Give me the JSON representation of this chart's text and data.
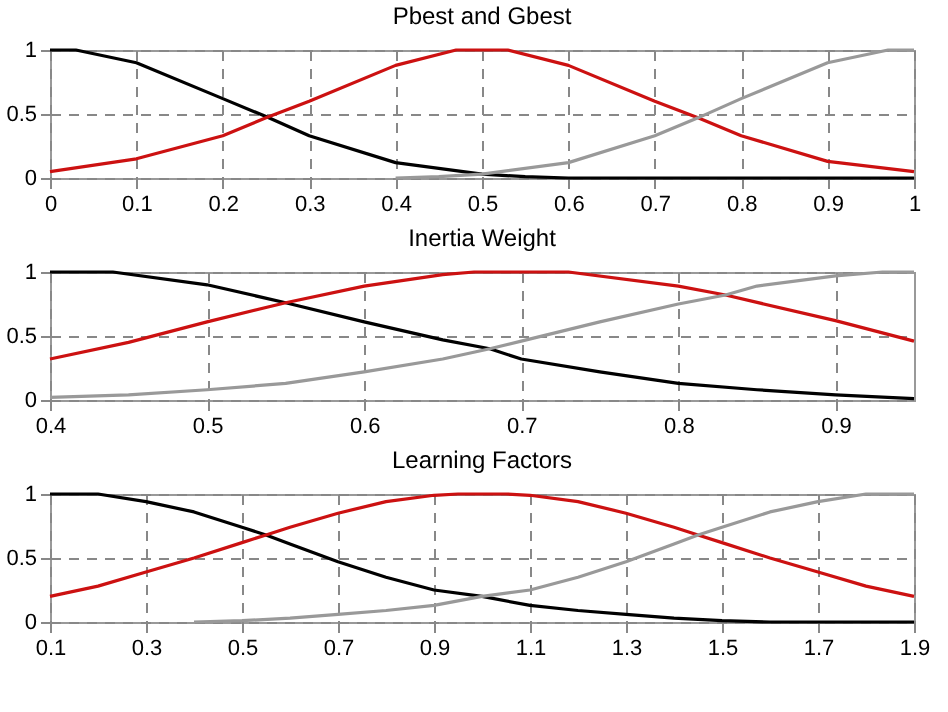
{
  "chart_data": [
    {
      "type": "line",
      "title": "Pbest and Gbest",
      "xlim": [
        0,
        1
      ],
      "xticks": [
        0,
        0.1,
        0.2,
        0.3,
        0.4,
        0.5,
        0.6,
        0.7,
        0.8,
        0.9,
        1
      ],
      "ylim": [
        0,
        1
      ],
      "yticks": [
        0,
        0.5,
        1
      ],
      "grid": true,
      "line_style": "solid",
      "marker": "none",
      "series": [
        {
          "color": "#000000",
          "x": [
            0,
            0.03,
            0.1,
            0.2,
            0.25,
            0.3,
            0.4,
            0.5,
            0.55,
            0.6,
            1
          ],
          "values": [
            1,
            1,
            0.9,
            0.62,
            0.48,
            0.33,
            0.12,
            0.03,
            0.01,
            0,
            0
          ]
        },
        {
          "color": "#cc1111",
          "x": [
            0,
            0.1,
            0.2,
            0.25,
            0.3,
            0.4,
            0.47,
            0.53,
            0.6,
            0.7,
            0.75,
            0.8,
            0.9,
            1
          ],
          "values": [
            0.05,
            0.15,
            0.33,
            0.47,
            0.6,
            0.88,
            1,
            1,
            0.88,
            0.6,
            0.47,
            0.33,
            0.13,
            0.05
          ]
        },
        {
          "color": "#999999",
          "x": [
            0.4,
            0.45,
            0.5,
            0.6,
            0.7,
            0.75,
            0.8,
            0.9,
            0.97,
            1
          ],
          "values": [
            0,
            0.01,
            0.03,
            0.12,
            0.33,
            0.47,
            0.62,
            0.9,
            1,
            1
          ]
        }
      ]
    },
    {
      "type": "line",
      "title": "Inertia Weight",
      "xlim": [
        0.4,
        0.95
      ],
      "xticks": [
        0.4,
        0.5,
        0.6,
        0.7,
        0.8,
        0.9
      ],
      "ylim": [
        0,
        1
      ],
      "yticks": [
        0,
        0.5,
        1
      ],
      "grid": true,
      "line_style": "solid",
      "marker": "none",
      "series": [
        {
          "color": "#000000",
          "x": [
            0.4,
            0.44,
            0.5,
            0.55,
            0.6,
            0.65,
            0.68,
            0.7,
            0.75,
            0.8,
            0.85,
            0.9,
            0.95
          ],
          "values": [
            1,
            1,
            0.9,
            0.76,
            0.61,
            0.47,
            0.4,
            0.32,
            0.22,
            0.13,
            0.08,
            0.04,
            0.01
          ]
        },
        {
          "color": "#cc1111",
          "x": [
            0.4,
            0.45,
            0.5,
            0.55,
            0.6,
            0.65,
            0.67,
            0.73,
            0.8,
            0.83,
            0.9,
            0.95
          ],
          "values": [
            0.32,
            0.45,
            0.61,
            0.76,
            0.89,
            0.98,
            1,
            1,
            0.89,
            0.82,
            0.62,
            0.46
          ]
        },
        {
          "color": "#999999",
          "x": [
            0.4,
            0.45,
            0.5,
            0.55,
            0.6,
            0.65,
            0.68,
            0.7,
            0.75,
            0.8,
            0.83,
            0.85,
            0.9,
            0.93,
            0.95
          ],
          "values": [
            0.02,
            0.04,
            0.08,
            0.13,
            0.22,
            0.32,
            0.4,
            0.46,
            0.61,
            0.75,
            0.82,
            0.89,
            0.97,
            1,
            1
          ]
        }
      ]
    },
    {
      "type": "line",
      "title": "Learning Factors",
      "xlim": [
        0.1,
        1.9
      ],
      "xticks": [
        0.1,
        0.3,
        0.5,
        0.7,
        0.9,
        1.1,
        1.3,
        1.5,
        1.7,
        1.9
      ],
      "ylim": [
        0,
        1
      ],
      "yticks": [
        0,
        0.5,
        1
      ],
      "grid": true,
      "line_style": "solid",
      "marker": "none",
      "series": [
        {
          "color": "#000000",
          "x": [
            0.1,
            0.2,
            0.3,
            0.4,
            0.5,
            0.55,
            0.6,
            0.7,
            0.8,
            0.9,
            1.0,
            1.1,
            1.2,
            1.3,
            1.4,
            1.5,
            1.6,
            1.9
          ],
          "values": [
            1,
            1,
            0.94,
            0.86,
            0.74,
            0.68,
            0.61,
            0.47,
            0.35,
            0.25,
            0.2,
            0.13,
            0.09,
            0.06,
            0.03,
            0.01,
            0,
            0
          ]
        },
        {
          "color": "#cc1111",
          "x": [
            0.1,
            0.2,
            0.3,
            0.4,
            0.5,
            0.55,
            0.6,
            0.7,
            0.8,
            0.9,
            0.95,
            1.05,
            1.1,
            1.2,
            1.3,
            1.4,
            1.45,
            1.5,
            1.6,
            1.7,
            1.8,
            1.9
          ],
          "values": [
            0.2,
            0.28,
            0.39,
            0.5,
            0.62,
            0.68,
            0.74,
            0.85,
            0.94,
            0.99,
            1,
            1,
            0.99,
            0.94,
            0.85,
            0.74,
            0.68,
            0.62,
            0.5,
            0.39,
            0.28,
            0.2
          ]
        },
        {
          "color": "#999999",
          "x": [
            0.4,
            0.5,
            0.6,
            0.7,
            0.8,
            0.9,
            1.0,
            1.1,
            1.2,
            1.3,
            1.4,
            1.45,
            1.5,
            1.6,
            1.7,
            1.8,
            1.9
          ],
          "values": [
            0,
            0.01,
            0.03,
            0.06,
            0.09,
            0.13,
            0.2,
            0.25,
            0.35,
            0.47,
            0.61,
            0.68,
            0.74,
            0.86,
            0.94,
            1,
            1
          ]
        }
      ]
    }
  ]
}
